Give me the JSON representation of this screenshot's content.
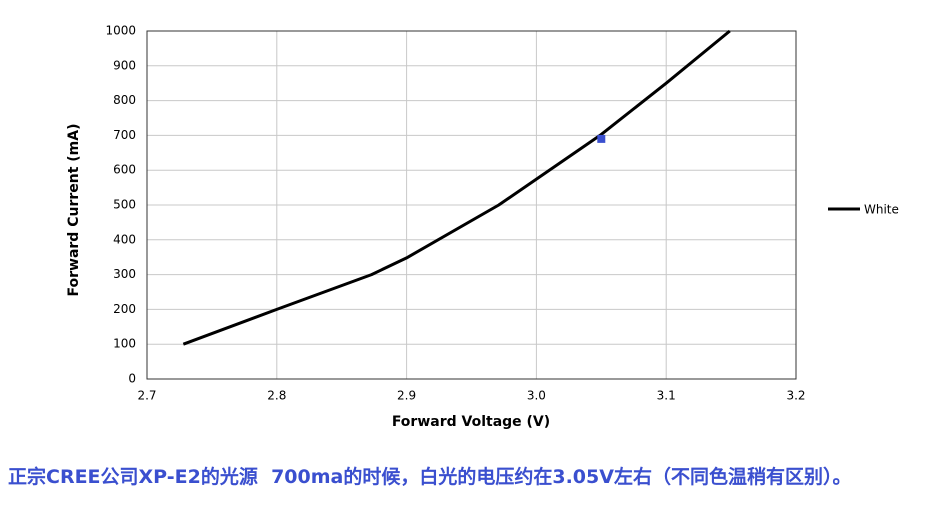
{
  "chart_data": {
    "type": "line",
    "x_label": "Forward Voltage (V)",
    "y_label": "Forward Current (mA)",
    "x": [
      2.728,
      2.8,
      2.873,
      2.9,
      2.971,
      3.049,
      3.1,
      3.149
    ],
    "series": [
      {
        "name": "White",
        "color": "#000000",
        "values": [
          100,
          200,
          300,
          348,
          500,
          700,
          850,
          1000
        ]
      }
    ],
    "highlight": {
      "x": 3.05,
      "y": 690,
      "color": "#3a4fcf"
    },
    "xlim": [
      2.7,
      3.2
    ],
    "xticks": [
      2.7,
      2.8,
      2.9,
      {
        "value": 3,
        "label": "3.0"
      },
      3.1,
      3.2
    ],
    "ylim": [
      0,
      1000
    ],
    "yticks": [
      0,
      100,
      200,
      300,
      400,
      500,
      600,
      700,
      800,
      900,
      1000
    ],
    "grid": true,
    "legend": "right"
  },
  "caption": "正宗CREE公司XP-E2的光源  700ma的时候，白光的电压约在3.05V左右（不同色温稍有区别）。"
}
